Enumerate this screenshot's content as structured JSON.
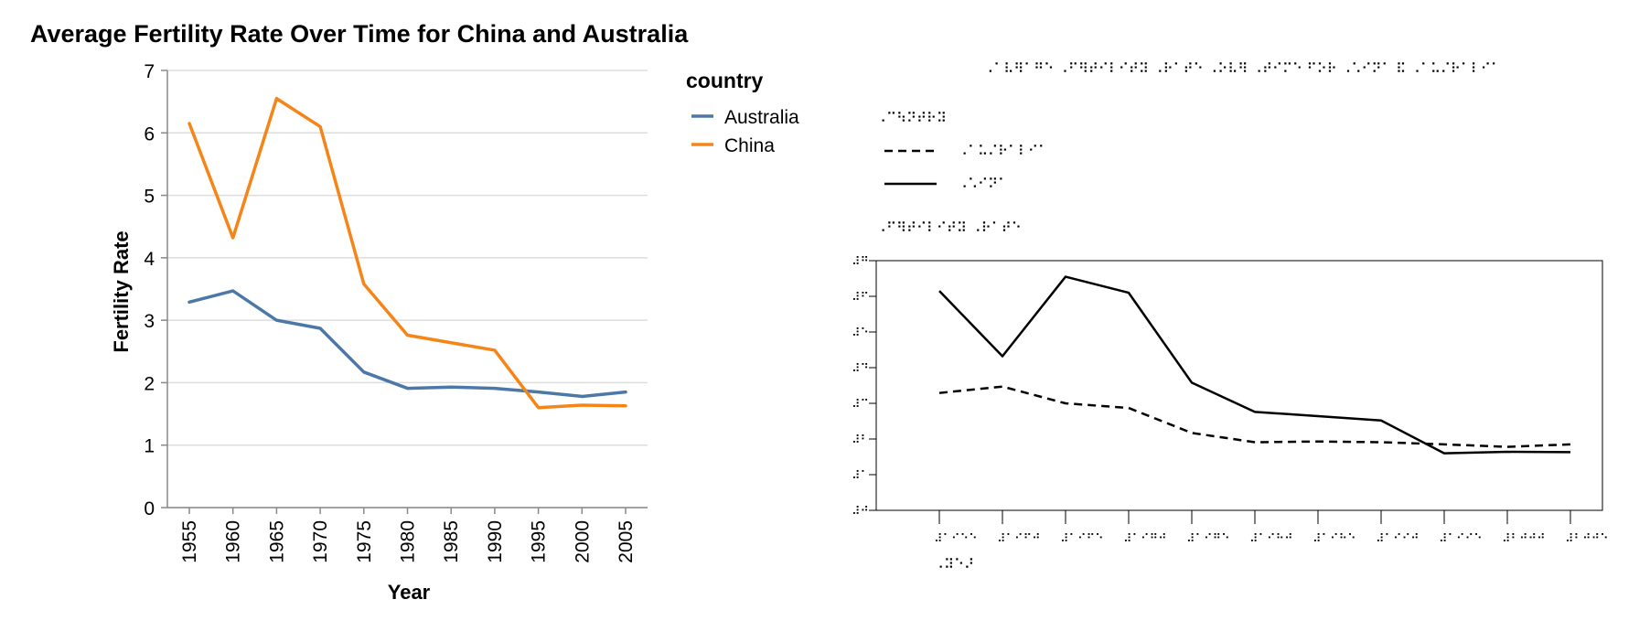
{
  "chart_data": [
    {
      "type": "line",
      "title": "Average Fertility Rate Over Time for China and Australia",
      "xlabel": "Year",
      "ylabel": "Fertility Rate",
      "x": [
        1955,
        1960,
        1965,
        1970,
        1975,
        1980,
        1985,
        1990,
        1995,
        2000,
        2005
      ],
      "ylim": [
        0,
        7
      ],
      "yticks": [
        0,
        1,
        2,
        3,
        4,
        5,
        6,
        7
      ],
      "grid": true,
      "legend_title": "country",
      "legend_position": "right",
      "series": [
        {
          "name": "Australia",
          "color": "#4c78a8",
          "values": [
            3.29,
            3.47,
            3.0,
            2.87,
            2.17,
            1.91,
            1.93,
            1.91,
            1.85,
            1.78,
            1.85
          ]
        },
        {
          "name": "China",
          "color": "#f58518",
          "values": [
            6.15,
            4.32,
            6.55,
            6.1,
            3.58,
            2.76,
            2.64,
            2.52,
            1.6,
            1.64,
            1.63
          ]
        }
      ]
    },
    {
      "type": "line",
      "variant": "braille-tactile",
      "title": "⠠⠁⠧⠻⠁⠛⠑ ⠠⠋⠻⠞⠊⠇⠊⠞⠽ ⠠⠗⠁⠞⠑ ⠠⠕⠧⠻ ⠠⠞⠊⠍⠑ ⠋⠕⠗ ⠠⠡⠊⠝⠁ ⠯ ⠠⠁⠥⠌⠗⠁⠇⠊⠁",
      "legend_title": "⠠⠉⠳⠝⠞⠗⠽",
      "ylabel": "⠠⠋⠻⠞⠊⠇⠊⠞⠽ ⠠⠗⠁⠞⠑",
      "xlabel": "⠠⠽⠑⠜",
      "x_tick_labels": [
        "⠼⠁⠊⠑⠑",
        "⠼⠁⠊⠋⠚",
        "⠼⠁⠊⠋⠑",
        "⠼⠁⠊⠛⠚",
        "⠼⠁⠊⠛⠑",
        "⠼⠁⠊⠓⠚",
        "⠼⠁⠊⠓⠑",
        "⠼⠁⠊⠊⠚",
        "⠼⠁⠊⠊⠑",
        "⠼⠃⠚⠚⠚",
        "⠼⠃⠚⠚⠑"
      ],
      "y_tick_labels": [
        "⠼⠚",
        "⠼⠁",
        "⠼⠃",
        "⠼⠉",
        "⠼⠙",
        "⠼⠑",
        "⠼⠋",
        "⠼⠛"
      ],
      "x": [
        1955,
        1960,
        1965,
        1970,
        1975,
        1980,
        1985,
        1990,
        1995,
        2000,
        2005
      ],
      "ylim": [
        0,
        7
      ],
      "grid": false,
      "series": [
        {
          "name": "⠠⠁⠥⠌⠗⠁⠇⠊⠁",
          "style": "dashed",
          "values": [
            3.29,
            3.47,
            3.0,
            2.87,
            2.17,
            1.91,
            1.93,
            1.91,
            1.85,
            1.78,
            1.85
          ]
        },
        {
          "name": "⠠⠡⠊⠝⠁",
          "style": "solid",
          "values": [
            6.15,
            4.32,
            6.55,
            6.1,
            3.58,
            2.76,
            2.64,
            2.52,
            1.6,
            1.64,
            1.63
          ]
        }
      ]
    }
  ]
}
